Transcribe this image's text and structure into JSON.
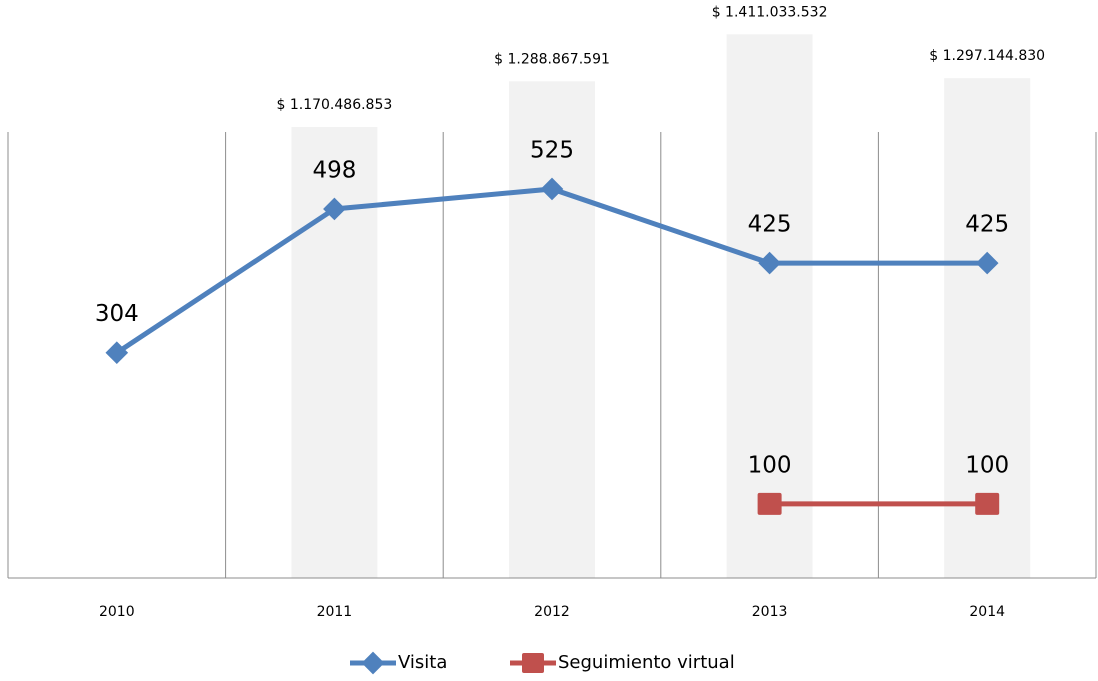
{
  "chart_data": {
    "type": "line",
    "categories": [
      "2010",
      "2011",
      "2012",
      "2013",
      "2014"
    ],
    "series": [
      {
        "name": "Visita",
        "color": "#4f81bd",
        "values": [
          304,
          498,
          525,
          425,
          425
        ]
      },
      {
        "name": "Seguimiento virtual",
        "color": "#c0504d",
        "values": [
          null,
          null,
          null,
          100,
          100
        ]
      }
    ],
    "bar_series": {
      "axis": "y2",
      "color": "#f2f2f2",
      "values": [
        null,
        1170486853,
        1288867591,
        1411033532,
        1297144830
      ],
      "value_labels": [
        null,
        "$ 1.170.486.853",
        "$ 1.288.867.591",
        "$ 1.411.033.532",
        "$ 1.297.144.830"
      ]
    },
    "ylim": [
      0,
      780
    ],
    "y2lim": [
      0,
      1500000000
    ],
    "legend": "bottom"
  }
}
